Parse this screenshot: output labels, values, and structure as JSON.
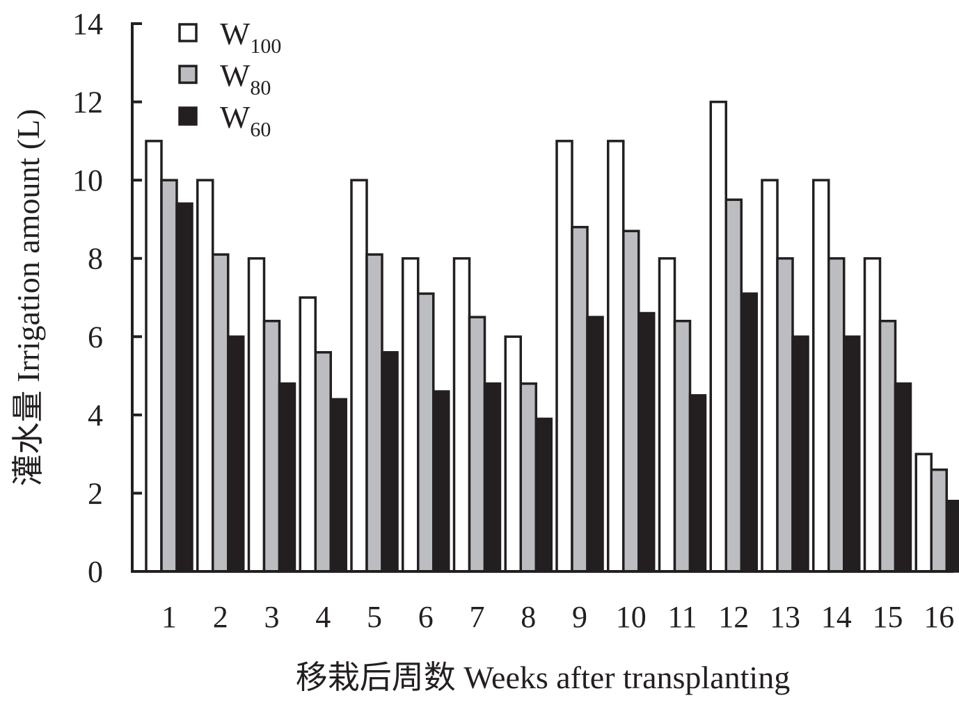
{
  "chart_data": {
    "type": "bar",
    "xlabel": "移栽后周数 Weeks after transplanting",
    "ylabel": "灌水量 Irrigation amount (L)",
    "ylim": [
      0,
      14
    ],
    "y_ticks": [
      "0",
      "2",
      "4",
      "6",
      "8",
      "10",
      "12",
      "14"
    ],
    "categories": [
      "1",
      "2",
      "3",
      "4",
      "5",
      "6",
      "7",
      "8",
      "9",
      "10",
      "11",
      "12",
      "13",
      "14",
      "15",
      "16"
    ],
    "series": [
      {
        "name": "W100",
        "label_main": "W",
        "label_sub": "100",
        "color": "#ffffff",
        "values": [
          11,
          10,
          8,
          7,
          10,
          8,
          8,
          6,
          11,
          11,
          8,
          12,
          10,
          10,
          8,
          3
        ]
      },
      {
        "name": "W80",
        "label_main": "W",
        "label_sub": "80",
        "color": "#bcbdc0",
        "values": [
          10,
          8.1,
          6.4,
          5.6,
          8.1,
          7.1,
          6.5,
          4.8,
          8.8,
          8.7,
          6.4,
          9.5,
          8,
          8,
          6.4,
          2.6
        ]
      },
      {
        "name": "W60",
        "label_main": "W",
        "label_sub": "60",
        "color": "#231f20",
        "values": [
          9.4,
          6,
          4.8,
          4.4,
          5.6,
          4.6,
          4.8,
          3.9,
          6.5,
          6.6,
          4.5,
          7.1,
          6,
          6,
          4.8,
          1.8
        ]
      }
    ],
    "grid": false,
    "legend_position": "top-left",
    "axis_color": "#231f20",
    "bar_stroke": "#231f20"
  }
}
